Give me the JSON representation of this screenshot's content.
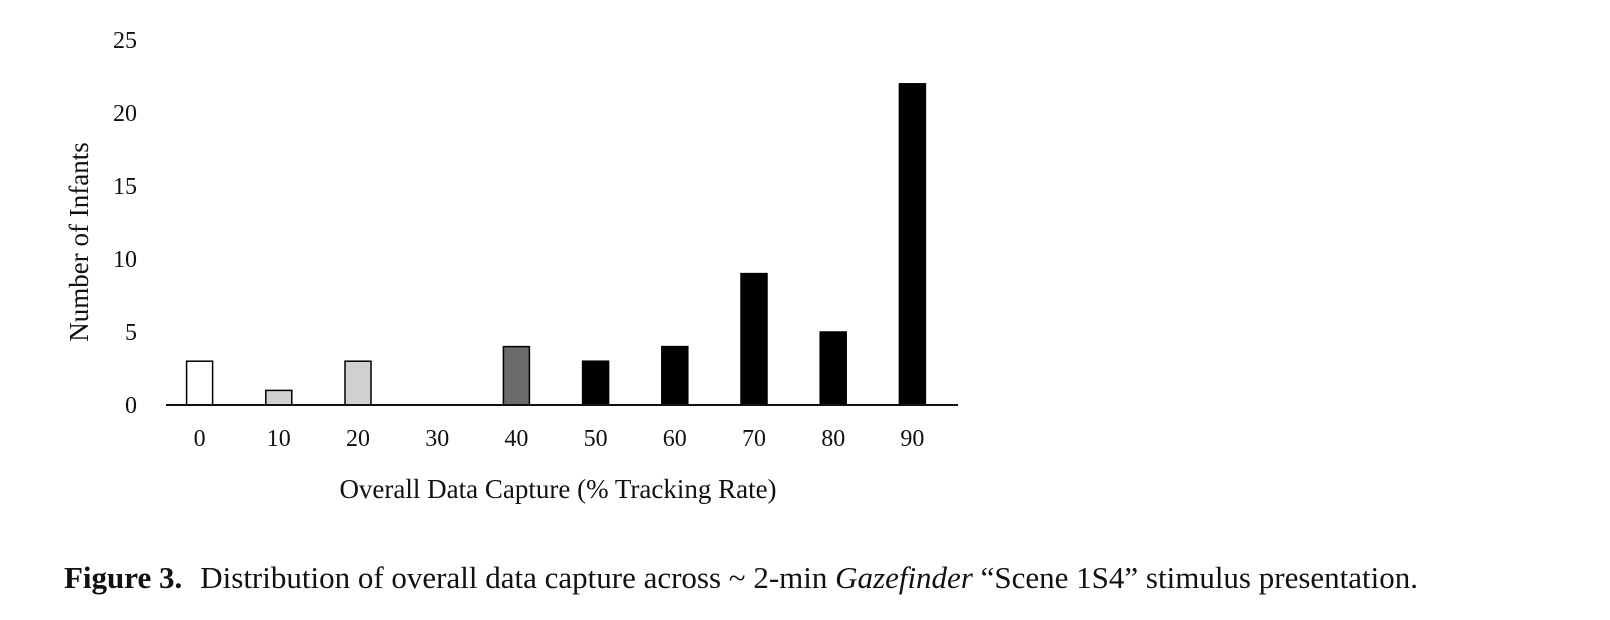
{
  "chart_data": {
    "type": "bar",
    "categories": [
      "0",
      "10",
      "20",
      "30",
      "40",
      "50",
      "60",
      "70",
      "80",
      "90"
    ],
    "values": [
      3,
      1,
      3,
      0,
      4,
      3,
      4,
      9,
      5,
      22
    ],
    "bar_colors": [
      "#ffffff",
      "#d0d0d0",
      "#d0d0d0",
      "#d0d0d0",
      "#6b6b6b",
      "#000000",
      "#000000",
      "#000000",
      "#000000",
      "#000000"
    ],
    "xlabel": "Overall Data Capture (% Tracking Rate)",
    "ylabel": "Number of Infants",
    "ylim": [
      0,
      25
    ],
    "yticks": [
      0,
      5,
      10,
      15,
      20,
      25
    ],
    "grid": false,
    "legend": "none"
  },
  "caption": {
    "label": "Figure 3.",
    "text_before": "Distribution of overall data capture across ~ 2-min ",
    "italic": "Gazefinder",
    "text_after": " “Scene 1S4” stimulus presentation."
  }
}
